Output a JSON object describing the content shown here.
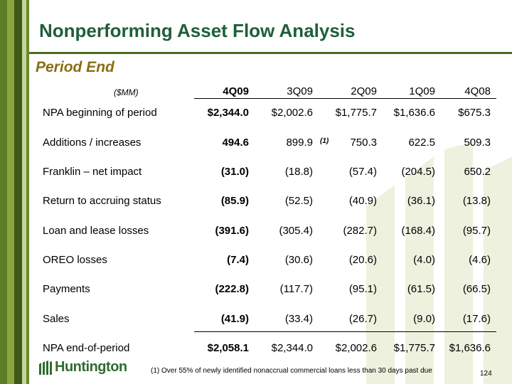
{
  "title": "Nonperforming Asset Flow Analysis",
  "subtitle": "Period End",
  "unit_label": "($MM)",
  "columns": [
    "4Q09",
    "3Q09",
    "2Q09",
    "1Q09",
    "4Q08"
  ],
  "rows": [
    {
      "label": "NPA beginning of period",
      "values": [
        "$2,344.0",
        "$2,002.6",
        "$1,775.7",
        "$1,636.6",
        "$675.3"
      ]
    },
    {
      "label": "Additions / increases",
      "values": [
        "494.6",
        "899.9",
        "750.3",
        "622.5",
        "509.3"
      ]
    },
    {
      "label": "Franklin – net impact",
      "values": [
        "(31.0)",
        "(18.8)",
        "(57.4)",
        "(204.5)",
        "650.2"
      ]
    },
    {
      "label": "Return to accruing status",
      "values": [
        "(85.9)",
        "(52.5)",
        "(40.9)",
        "(36.1)",
        "(13.8)"
      ]
    },
    {
      "label": "Loan and lease losses",
      "values": [
        "(391.6)",
        "(305.4)",
        "(282.7)",
        "(168.4)",
        "(95.7)"
      ]
    },
    {
      "label": "OREO losses",
      "values": [
        "(7.4)",
        "(30.6)",
        "(20.6)",
        "(4.0)",
        "(4.6)"
      ]
    },
    {
      "label": "Payments",
      "values": [
        "(222.8)",
        "(117.7)",
        "(95.1)",
        "(61.5)",
        "(66.5)"
      ]
    },
    {
      "label": "Sales",
      "values": [
        "(41.9)",
        "(33.4)",
        "(26.7)",
        "(9.0)",
        "(17.6)"
      ]
    },
    {
      "label": "NPA end-of-period",
      "values": [
        "$2,058.1",
        "$2,344.0",
        "$2,002.6",
        "$1,775.7",
        "$1,636.6"
      ]
    }
  ],
  "footnote_marker": "(1)",
  "footnote": "(1)  Over 55% of newly identified nonaccrual commercial loans less than 30 days past due",
  "logo_text": "Huntington",
  "page_number": "124",
  "colors": {
    "title": "#1f5e3a",
    "subtitle": "#8a6d14",
    "stripe": "#5f7d26",
    "watermark": "#eef1de"
  }
}
